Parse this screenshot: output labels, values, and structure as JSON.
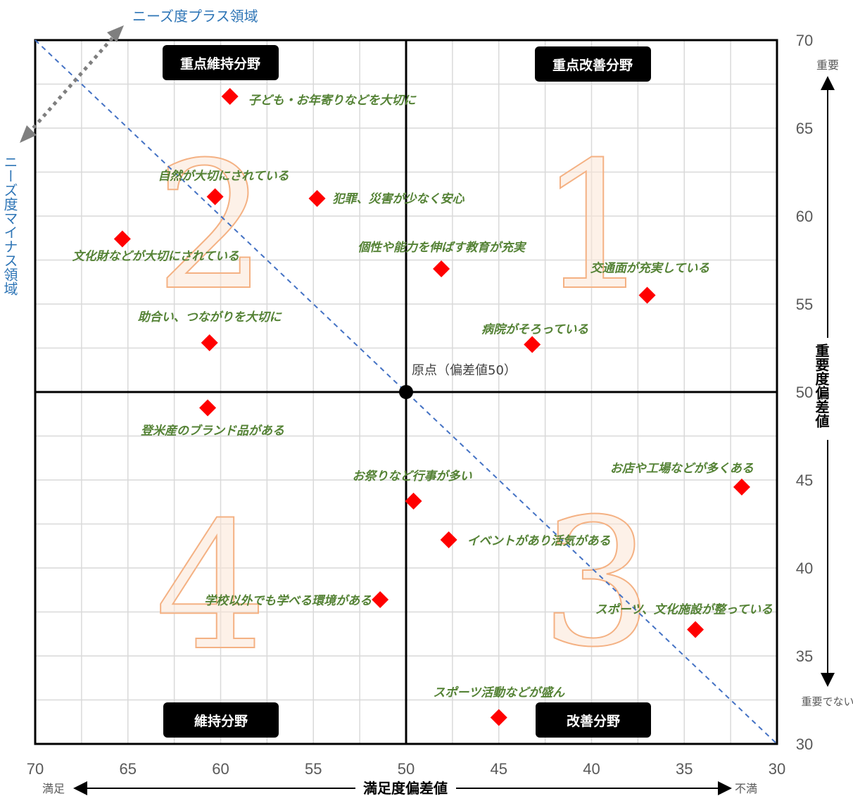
{
  "chart_data": {
    "type": "scatter",
    "xlabel": "満足度偏差値",
    "ylabel": "重要度偏差値",
    "xlim": [
      70,
      30
    ],
    "ylim": [
      30,
      70
    ],
    "x_reversed": true,
    "xticks": [
      70,
      65,
      60,
      55,
      50,
      45,
      40,
      35,
      30
    ],
    "yticks": [
      70,
      65,
      60,
      55,
      50,
      45,
      40,
      35,
      30
    ],
    "grid": true,
    "x_left_note": "満足",
    "x_right_note": "不満",
    "y_top_note": "重要",
    "y_bottom_note": "重要でない",
    "origin": {
      "label": "原点（偏差値50）",
      "x": 50,
      "y": 50
    },
    "needs_plus_label": "ニーズ度プラス領域",
    "needs_minus_label": "ニーズ度マイナス領域",
    "quadrant_labels": [
      "重点維持分野",
      "重点改善分野",
      "維持分野",
      "改善分野"
    ],
    "quadrant_numbers": [
      "1",
      "2",
      "3",
      "4"
    ],
    "points": [
      {
        "label": "子ども・お年寄りなどを大切に",
        "x": 59.5,
        "y": 66.8
      },
      {
        "label": "自然が大切にされている",
        "x": 60.3,
        "y": 61.1
      },
      {
        "label": "犯罪、災害が少なく安心",
        "x": 54.8,
        "y": 61.0
      },
      {
        "label": "文化財などが大切にされている",
        "x": 65.3,
        "y": 58.7
      },
      {
        "label": "個性や能力を伸ばす教育が充実",
        "x": 48.1,
        "y": 57.0
      },
      {
        "label": "交通面が充実している",
        "x": 37.0,
        "y": 55.5
      },
      {
        "label": "助合い、つながりを大切に",
        "x": 60.6,
        "y": 52.8
      },
      {
        "label": "病院がそろっている",
        "x": 43.2,
        "y": 52.7
      },
      {
        "label": "登米産のブランド品がある",
        "x": 60.7,
        "y": 49.1
      },
      {
        "label": "お店や工場などが多くある",
        "x": 31.9,
        "y": 44.6
      },
      {
        "label": "お祭りなど行事が多い",
        "x": 49.6,
        "y": 43.8
      },
      {
        "label": "イベントがあり活気がある",
        "x": 47.7,
        "y": 41.6
      },
      {
        "label": "学校以外でも学べる環境がある",
        "x": 51.4,
        "y": 38.2
      },
      {
        "label": "スポーツ、文化施設が整っている",
        "x": 34.4,
        "y": 36.5
      },
      {
        "label": "スポーツ活動などが盛ん",
        "x": 45.0,
        "y": 31.5
      }
    ]
  }
}
